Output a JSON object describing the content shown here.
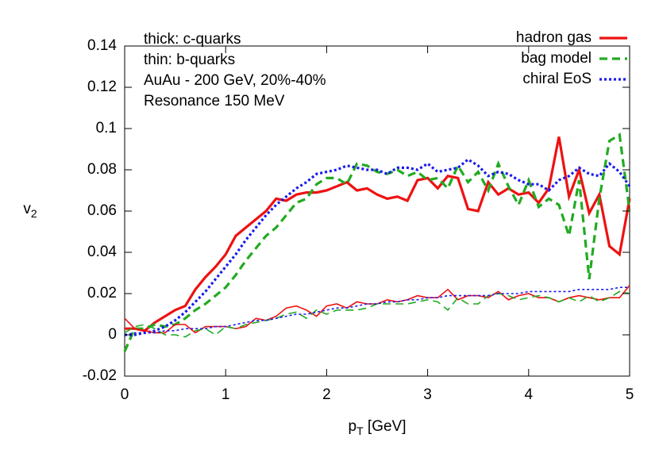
{
  "chart_data": {
    "type": "line",
    "x_label": [
      "p",
      "T",
      " [GeV]"
    ],
    "y_label": [
      "v",
      "2"
    ],
    "annotations": [
      "thick: c-quarks",
      "thin: b-quarks",
      "AuAu - 200 GeV, 20%-40%",
      "Resonance 150 MeV"
    ],
    "annotation_color": "#1a1aee",
    "xlim": [
      0,
      5
    ],
    "xticks": [
      0,
      1,
      2,
      3,
      4,
      5
    ],
    "ylim": [
      -0.02,
      0.14
    ],
    "yticks": [
      -0.02,
      0,
      0.02,
      0.04,
      0.06,
      0.08,
      0.1,
      0.12,
      0.14
    ],
    "legend": "upper right",
    "x": [
      0,
      0.1,
      0.2,
      0.3,
      0.4,
      0.5,
      0.6,
      0.7,
      0.8,
      0.9,
      1,
      1.1,
      1.2,
      1.3,
      1.4,
      1.5,
      1.6,
      1.7,
      1.8,
      1.9,
      2,
      2.1,
      2.2,
      2.3,
      2.4,
      2.5,
      2.6,
      2.7,
      2.8,
      2.9,
      3,
      3.1,
      3.2,
      3.3,
      3.4,
      3.5,
      3.6,
      3.7,
      3.8,
      3.9,
      4,
      4.1,
      4.2,
      4.3,
      4.4,
      4.5,
      4.6,
      4.7,
      4.8,
      4.9,
      5
    ],
    "series": [
      {
        "name": "hadron gas",
        "color": "#ee1111",
        "width": 3.2,
        "dash": "solid",
        "values": [
          0.003,
          0.003,
          0.002,
          0.006,
          0.009,
          0.012,
          0.014,
          0.022,
          0.028,
          0.033,
          0.039,
          0.048,
          0.052,
          0.056,
          0.06,
          0.066,
          0.065,
          0.068,
          0.069,
          0.069,
          0.07,
          0.072,
          0.074,
          0.07,
          0.071,
          0.068,
          0.066,
          0.067,
          0.065,
          0.075,
          0.076,
          0.071,
          0.077,
          0.076,
          0.061,
          0.06,
          0.074,
          0.068,
          0.071,
          0.068,
          0.069,
          0.064,
          0.071,
          0.096,
          0.067,
          0.08,
          0.059,
          0.068,
          0.043,
          0.039,
          0.066
        ]
      },
      {
        "name": "bag model",
        "color": "#22aa22",
        "width": 3.2,
        "dash": "dashed",
        "values": [
          -0.008,
          0.003,
          0.003,
          0.005,
          0.004,
          0.005,
          0.008,
          0.012,
          0.015,
          0.019,
          0.023,
          0.029,
          0.036,
          0.042,
          0.048,
          0.052,
          0.058,
          0.064,
          0.066,
          0.073,
          0.076,
          0.076,
          0.073,
          0.083,
          0.082,
          0.079,
          0.078,
          0.08,
          0.077,
          0.079,
          0.075,
          0.076,
          0.071,
          0.082,
          0.074,
          0.079,
          0.07,
          0.083,
          0.072,
          0.063,
          0.075,
          0.062,
          0.066,
          0.063,
          0.048,
          0.075,
          0.027,
          0.066,
          0.094,
          0.097,
          0.06
        ]
      },
      {
        "name": "chiral EoS",
        "color": "#1a1aee",
        "width": 3.2,
        "dash": "dotted",
        "values": [
          0,
          0,
          0.001,
          0.002,
          0.004,
          0.007,
          0.011,
          0.016,
          0.021,
          0.027,
          0.033,
          0.039,
          0.046,
          0.052,
          0.058,
          0.063,
          0.067,
          0.071,
          0.074,
          0.078,
          0.079,
          0.08,
          0.082,
          0.081,
          0.08,
          0.08,
          0.078,
          0.081,
          0.081,
          0.08,
          0.083,
          0.079,
          0.08,
          0.081,
          0.085,
          0.082,
          0.077,
          0.079,
          0.078,
          0.075,
          0.073,
          0.073,
          0.07,
          0.075,
          0.077,
          0.081,
          0.078,
          0.077,
          0.083,
          0.079,
          0.072
        ]
      },
      {
        "color": "#ee1111",
        "width": 1.6,
        "dash": "solid",
        "values": [
          0.008,
          0.003,
          0.002,
          0.001,
          0.001,
          0.005,
          0.005,
          0.001,
          0.004,
          0.004,
          0.004,
          0.003,
          0.004,
          0.008,
          0.007,
          0.009,
          0.013,
          0.014,
          0.012,
          0.009,
          0.014,
          0.015,
          0.013,
          0.016,
          0.015,
          0.015,
          0.017,
          0.016,
          0.017,
          0.019,
          0.018,
          0.018,
          0.022,
          0.017,
          0.019,
          0.019,
          0.018,
          0.021,
          0.017,
          0.019,
          0.02,
          0.018,
          0.018,
          0.016,
          0.018,
          0.019,
          0.018,
          0.017,
          0.018,
          0.018,
          0.024
        ]
      },
      {
        "color": "#22aa22",
        "width": 1.6,
        "dash": "dashed",
        "values": [
          0.001,
          0.004,
          0.005,
          0.003,
          0,
          0,
          -0.001,
          0.002,
          0.003,
          0,
          0.004,
          0.003,
          0.005,
          0.006,
          0.007,
          0.008,
          0.01,
          0.011,
          0.008,
          0.012,
          0.01,
          0.012,
          0.012,
          0.012,
          0.013,
          0.015,
          0.015,
          0.015,
          0.015,
          0.016,
          0.017,
          0.016,
          0.012,
          0.018,
          0.015,
          0.015,
          0.019,
          0.02,
          0.019,
          0.017,
          0.018,
          0.019,
          0.018,
          0.016,
          0.018,
          0.016,
          0.019,
          0.016,
          0.018,
          0.021,
          0.02
        ]
      },
      {
        "color": "#1a1aee",
        "width": 1.6,
        "dash": "dotted",
        "values": [
          0,
          0.001,
          0.001,
          0.001,
          0.002,
          0.002,
          0.003,
          0.003,
          0.003,
          0.004,
          0.004,
          0.005,
          0.006,
          0.007,
          0.007,
          0.008,
          0.009,
          0.01,
          0.01,
          0.011,
          0.012,
          0.013,
          0.013,
          0.014,
          0.015,
          0.015,
          0.016,
          0.016,
          0.017,
          0.017,
          0.018,
          0.018,
          0.019,
          0.019,
          0.019,
          0.019,
          0.019,
          0.02,
          0.02,
          0.02,
          0.021,
          0.021,
          0.021,
          0.021,
          0.021,
          0.022,
          0.022,
          0.022,
          0.022,
          0.023,
          0.023
        ]
      }
    ]
  }
}
